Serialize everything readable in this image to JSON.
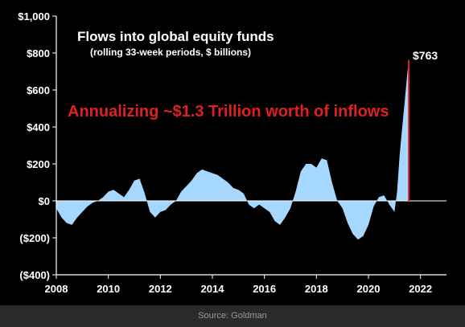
{
  "chart_data": {
    "type": "area",
    "title": "Flows into global equity funds",
    "subtitle": "(rolling  33-week periods, $ billions)",
    "annotation": "Annualizing ~$1.3 Trillion worth of inflows",
    "peak_label": "$763",
    "peak_value": 763,
    "xlim": [
      2008,
      2023
    ],
    "ylim": [
      -400,
      1000
    ],
    "x_ticks": [
      2008,
      2010,
      2012,
      2014,
      2016,
      2018,
      2020,
      2022
    ],
    "x_tick_labels": [
      "2008",
      "2010",
      "2012",
      "2014",
      "2016",
      "2018",
      "2020",
      "2022"
    ],
    "y_ticks": [
      1000,
      800,
      600,
      400,
      200,
      0,
      -200,
      -400
    ],
    "y_tick_labels": [
      "$1,000",
      "$800",
      "$600",
      "$400",
      "$200",
      "$0",
      "($200)",
      "($400)"
    ],
    "grid": false,
    "series": [
      {
        "x": [
          2008.0,
          2008.2,
          2008.4,
          2008.6,
          2008.8,
          2009.0,
          2009.2,
          2009.4,
          2009.6,
          2009.8,
          2010.0,
          2010.2,
          2010.4,
          2010.6,
          2010.8,
          2011.0,
          2011.2,
          2011.4,
          2011.6,
          2011.8,
          2012.0,
          2012.2,
          2012.4,
          2012.6,
          2012.8,
          2013.0,
          2013.2,
          2013.4,
          2013.6,
          2013.8,
          2014.0,
          2014.2,
          2014.4,
          2014.6,
          2014.8,
          2015.0,
          2015.2,
          2015.4,
          2015.6,
          2015.8,
          2016.0,
          2016.2,
          2016.4,
          2016.6,
          2016.8,
          2017.0,
          2017.2,
          2017.4,
          2017.6,
          2017.8,
          2018.0,
          2018.2,
          2018.4,
          2018.6,
          2018.8,
          2019.0,
          2019.2,
          2019.4,
          2019.6,
          2019.8,
          2020.0,
          2020.2,
          2020.4,
          2020.6,
          2020.8,
          2021.0,
          2021.1,
          2021.2,
          2021.3,
          2021.4,
          2021.5,
          2021.55
        ],
        "values": [
          -40,
          -90,
          -120,
          -130,
          -90,
          -60,
          -30,
          -10,
          0,
          20,
          50,
          60,
          40,
          20,
          60,
          110,
          120,
          40,
          -60,
          -90,
          -60,
          -50,
          -20,
          0,
          50,
          80,
          110,
          150,
          170,
          160,
          150,
          140,
          120,
          100,
          70,
          60,
          40,
          -20,
          -40,
          -20,
          -40,
          -60,
          -110,
          -130,
          -90,
          -40,
          50,
          160,
          200,
          200,
          180,
          230,
          220,
          100,
          0,
          -40,
          -120,
          -180,
          -210,
          -190,
          -130,
          -30,
          20,
          30,
          -20,
          -60,
          50,
          250,
          400,
          550,
          700,
          763
        ]
      }
    ],
    "colors": {
      "area": "#a6d8ff",
      "peak_marker": "#e02020",
      "annotation": "#e02020",
      "text": "#ffffff",
      "background": "#000000"
    }
  },
  "source": "Source: Goldman"
}
